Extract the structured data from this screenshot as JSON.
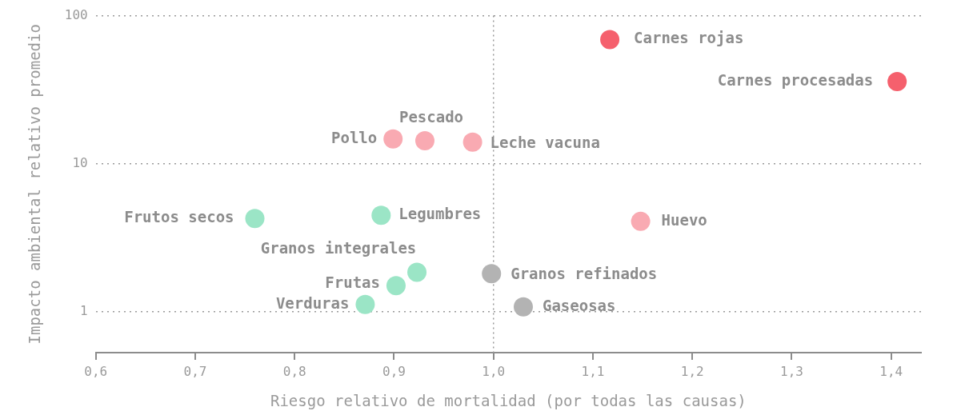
{
  "chart_data": {
    "type": "scatter",
    "x_label": "Riesgo relativo de mortalidad (por todas las causas)",
    "y_label": "Impacto ambiental relativo promedio",
    "labels": [
      "Carnes rojas",
      "Carnes procesadas",
      "Pollo",
      "Pescado",
      "Leche vacuna",
      "Frutos secos",
      "Legumbres",
      "Huevo",
      "Granos integrales",
      "Granos refinados",
      "Frutas",
      "Verduras",
      "Gaseosas"
    ],
    "x": [
      1.117,
      1.406,
      0.899,
      0.931,
      0.979,
      0.76,
      0.887,
      1.148,
      0.923,
      0.998,
      0.902,
      0.871,
      1.03
    ],
    "values": [
      69,
      35.9,
      14.7,
      14.3,
      14.0,
      4.27,
      4.48,
      4.08,
      1.85,
      1.81,
      1.5,
      1.12,
      1.08
    ],
    "colors": [
      "#f5606d",
      "#f5606d",
      "#f9aab2",
      "#f9aab2",
      "#f9aab2",
      "#9be5c6",
      "#9be5c6",
      "#f9aab2",
      "#9be5c6",
      "#b3b3b3",
      "#9be5c6",
      "#9be5c6",
      "#b3b3b3"
    ],
    "xlim": [
      0.6,
      1.43
    ],
    "xticks": [
      {
        "value": 0.6,
        "label": "0,6"
      },
      {
        "value": 0.7,
        "label": "0,7"
      },
      {
        "value": 0.8,
        "label": "0,8"
      },
      {
        "value": 0.9,
        "label": "0,9"
      },
      {
        "value": 1.0,
        "label": "1,0"
      },
      {
        "value": 1.1,
        "label": "1,1"
      },
      {
        "value": 1.2,
        "label": "1,2"
      },
      {
        "value": 1.3,
        "label": "1,3"
      },
      {
        "value": 1.4,
        "label": "1,4"
      }
    ],
    "ylim": [
      0.53,
      100
    ],
    "yticks": [
      1,
      10,
      100
    ],
    "log": "y",
    "grid": "y",
    "vline": 1.0,
    "marker": "circle"
  }
}
